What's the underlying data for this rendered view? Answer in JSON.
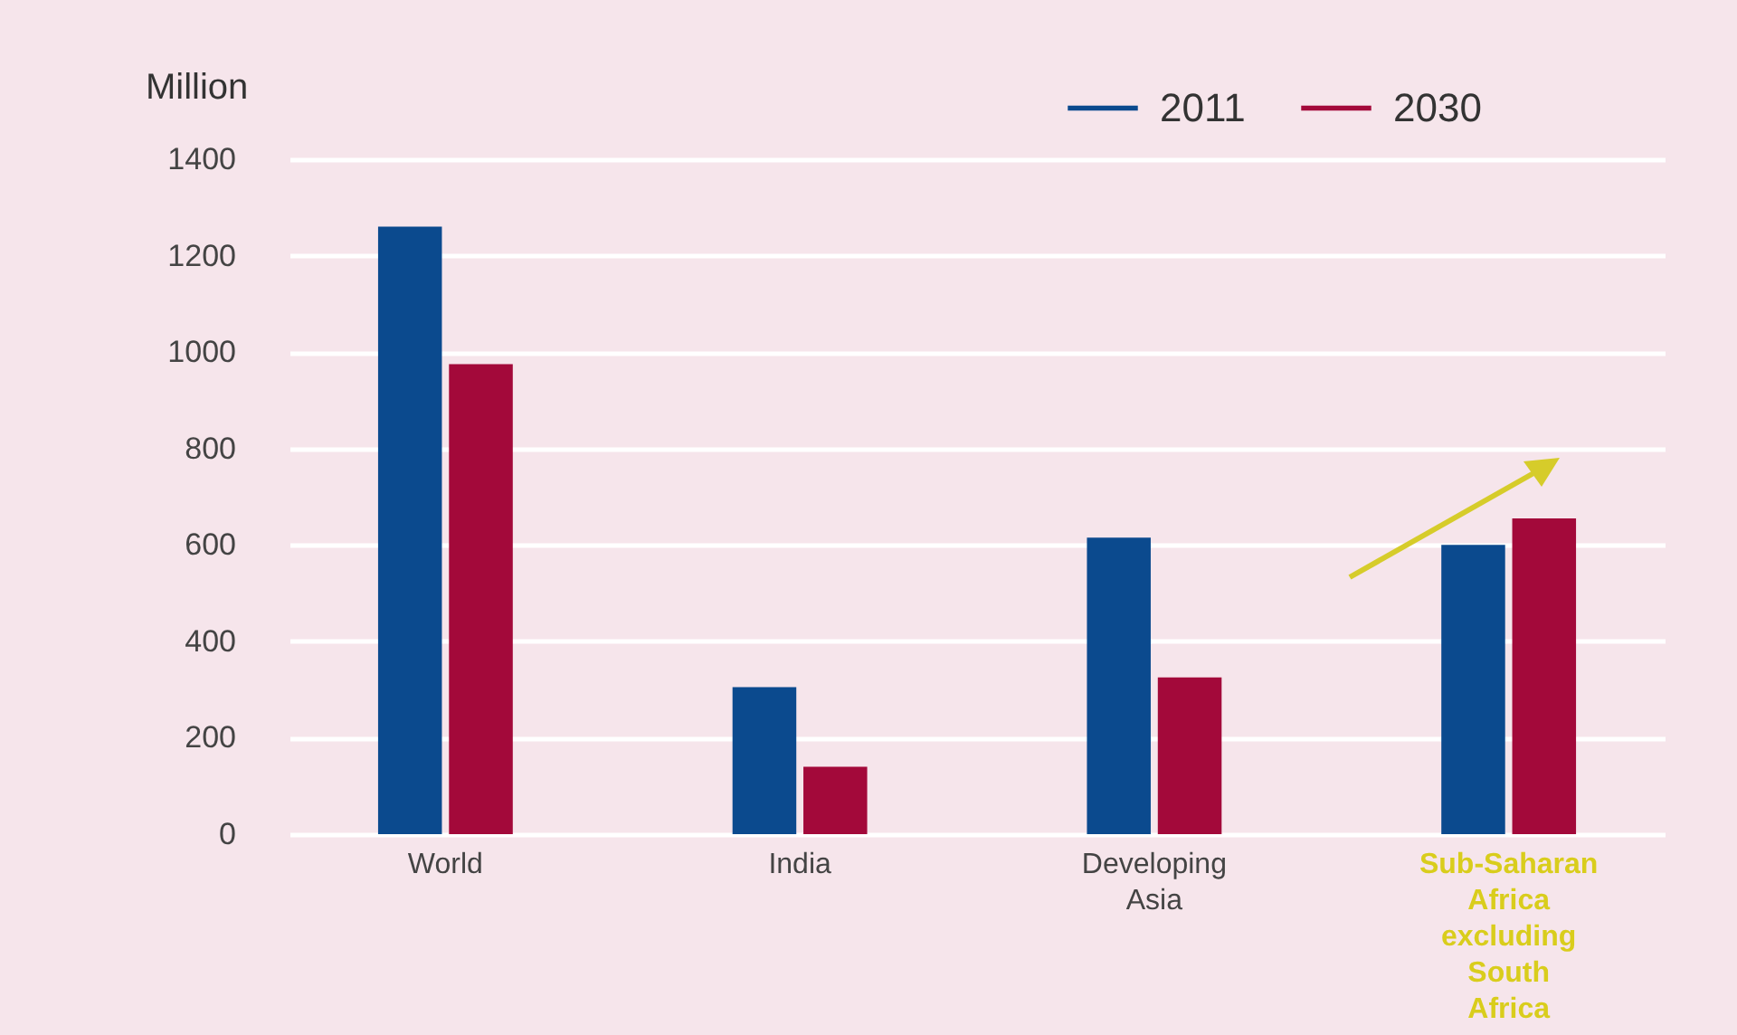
{
  "chart_data": {
    "type": "bar",
    "ylabel": "Million",
    "categories": [
      "World",
      "India",
      "Developing Asia",
      "Sub-Saharan Africa excluding South Africa"
    ],
    "series": [
      {
        "name": "2011",
        "color": "#0b4a8e",
        "values": [
          1260,
          305,
          615,
          600
        ]
      },
      {
        "name": "2030",
        "color": "#a3093a",
        "values": [
          975,
          140,
          325,
          655
        ]
      }
    ],
    "ylim": [
      0,
      1400
    ],
    "yticks": [
      0,
      200,
      400,
      600,
      800,
      1000,
      1200,
      1400
    ],
    "grid": true,
    "legend": "top right"
  }
}
